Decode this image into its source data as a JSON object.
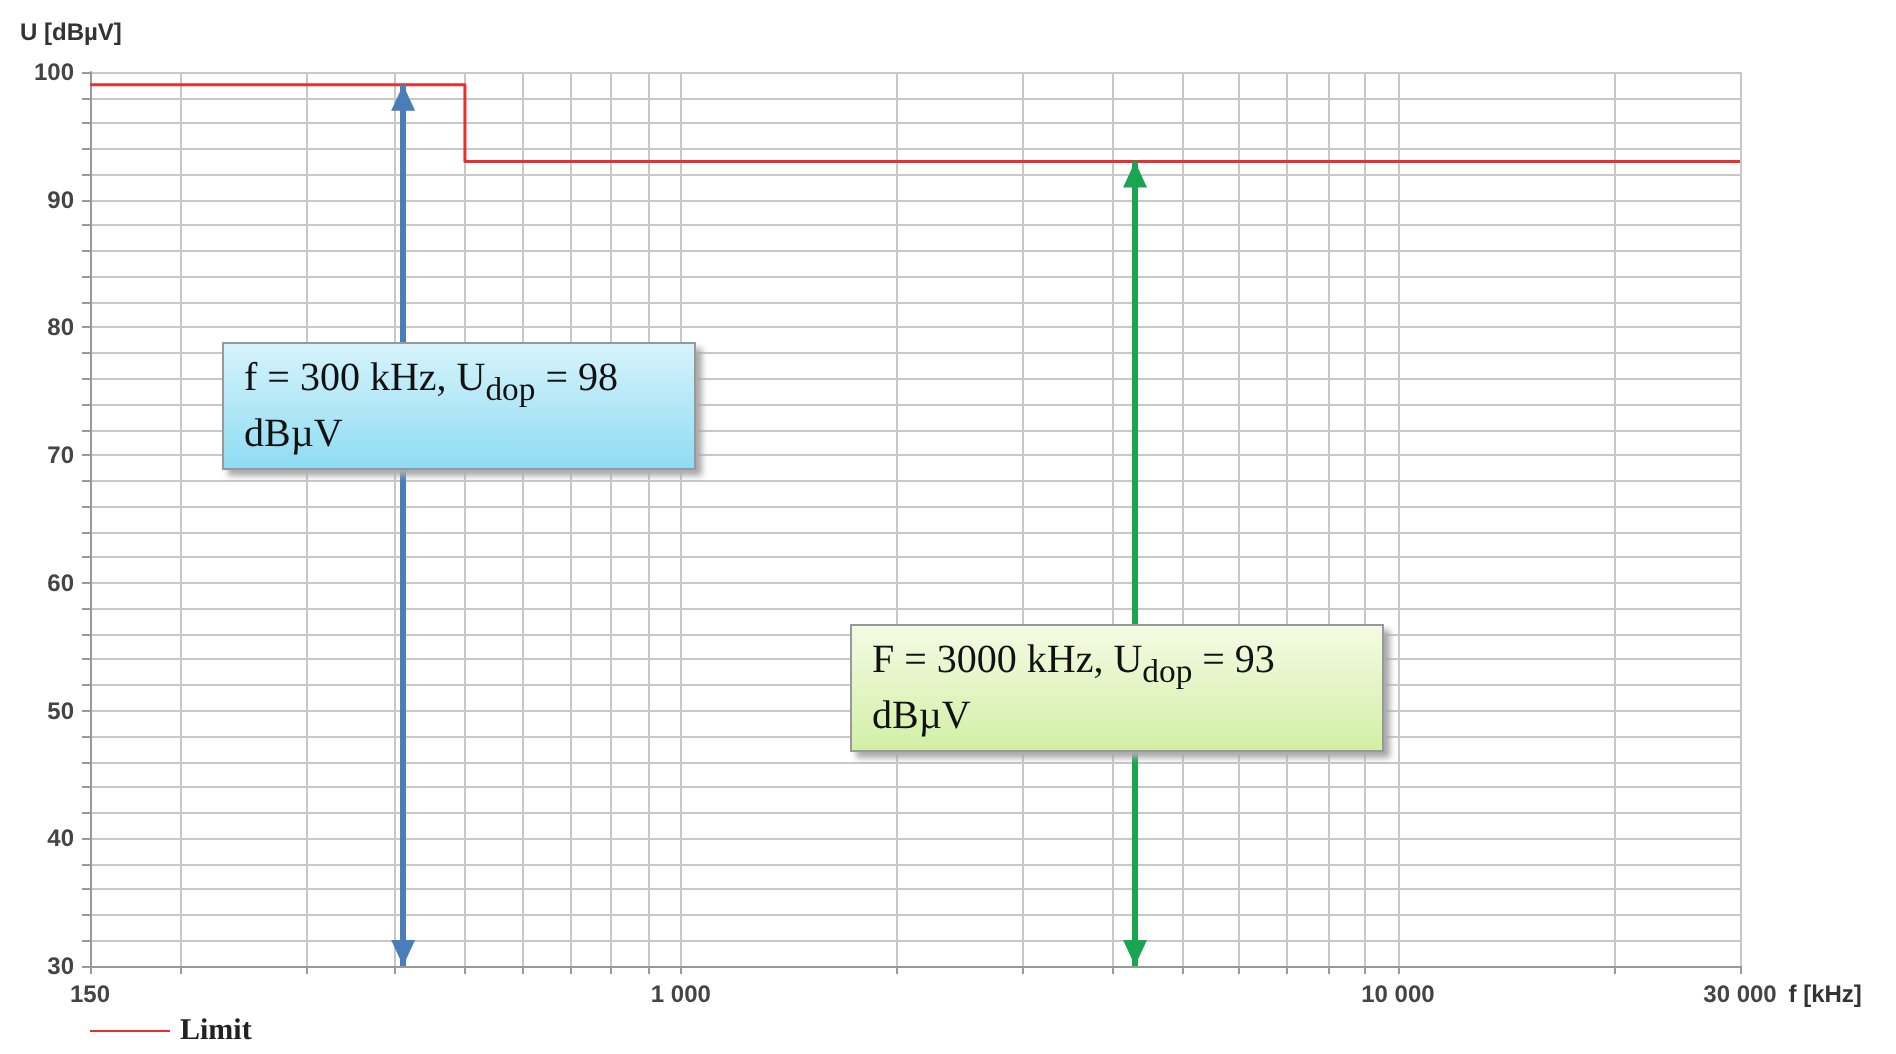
{
  "chart_data": {
    "type": "step",
    "xlabel": "f [kHz]",
    "ylabel": "U [dBµV]",
    "x": [
      150,
      500,
      30000
    ],
    "series": [
      {
        "name": "Limit",
        "color": "#e8302c",
        "values": [
          99,
          93,
          93
        ]
      }
    ],
    "log": "x",
    "xlim": [
      150,
      30000
    ],
    "ylim": [
      30,
      100
    ],
    "xticks": [
      150,
      {
        "value": 200,
        "label": null
      },
      {
        "value": 300,
        "label": null
      },
      {
        "value": 400,
        "label": null
      },
      {
        "value": 500,
        "label": null
      },
      {
        "value": 600,
        "label": null
      },
      {
        "value": 700,
        "label": null
      },
      {
        "value": 800,
        "label": null
      },
      {
        "value": 900,
        "label": null
      },
      {
        "value": 1000,
        "label": "1 000"
      },
      {
        "value": 2000,
        "label": null
      },
      {
        "value": 3000,
        "label": null
      },
      {
        "value": 4000,
        "label": null
      },
      {
        "value": 5000,
        "label": null
      },
      {
        "value": 6000,
        "label": null
      },
      {
        "value": 7000,
        "label": null
      },
      {
        "value": 8000,
        "label": null
      },
      {
        "value": 9000,
        "label": null
      },
      {
        "value": 10000,
        "label": "10 000"
      },
      {
        "value": 20000,
        "label": null
      },
      {
        "value": 30000,
        "label": "30 000"
      }
    ],
    "yticks": [
      30,
      {
        "value": 32,
        "label": null
      },
      {
        "value": 34,
        "label": null
      },
      {
        "value": 36,
        "label": null
      },
      {
        "value": 38,
        "label": null
      },
      40,
      {
        "value": 42,
        "label": null
      },
      {
        "value": 44,
        "label": null
      },
      {
        "value": 46,
        "label": null
      },
      {
        "value": 48,
        "label": null
      },
      50,
      {
        "value": 52,
        "label": null
      },
      {
        "value": 54,
        "label": null
      },
      {
        "value": 56,
        "label": null
      },
      {
        "value": 58,
        "label": null
      },
      60,
      {
        "value": 62,
        "label": null
      },
      {
        "value": 64,
        "label": null
      },
      {
        "value": 66,
        "label": null
      },
      {
        "value": 68,
        "label": null
      },
      70,
      {
        "value": 72,
        "label": null
      },
      {
        "value": 74,
        "label": null
      },
      {
        "value": 76,
        "label": null
      },
      {
        "value": 78,
        "label": null
      },
      80,
      {
        "value": 82,
        "label": null
      },
      {
        "value": 84,
        "label": null
      },
      {
        "value": 86,
        "label": null
      },
      {
        "value": 88,
        "label": null
      },
      90,
      {
        "value": 92,
        "label": null
      },
      {
        "value": 94,
        "label": null
      },
      {
        "value": 96,
        "label": null
      },
      {
        "value": 98,
        "label": null
      },
      100
    ],
    "grid": true,
    "legend": "bottom left",
    "line_style": "solid",
    "marker": "none",
    "ref_lines": [
      {
        "axis": "x",
        "value": 410,
        "color": "#4a7ebb"
      },
      {
        "axis": "x",
        "value": 4300,
        "color": "#1aa550"
      }
    ],
    "annotations": [
      "f = 300 kHz, U$_{dop}$ = 98 dBµV",
      "F = 3000 kHz, U$_{dop}$ = 93 dBµV"
    ]
  }
}
